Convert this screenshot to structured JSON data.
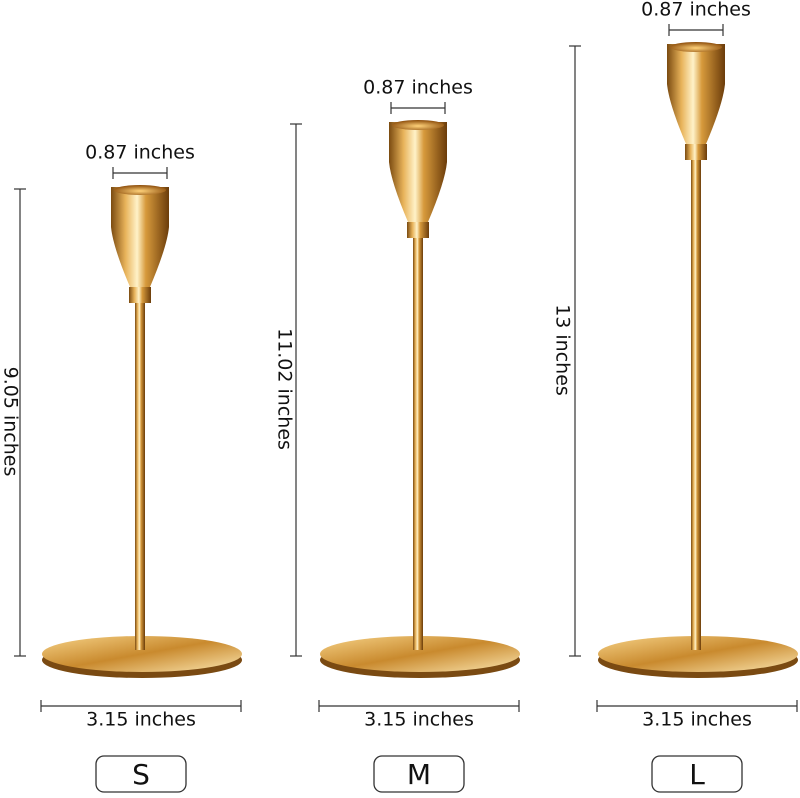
{
  "items": [
    {
      "size": "S",
      "cup_width": "0.87 inches",
      "height": "9.05 inches",
      "base_width": "3.15 inches"
    },
    {
      "size": "M",
      "cup_width": "0.87 inches",
      "height": "11.02 inches",
      "base_width": "3.15 inches"
    },
    {
      "size": "L",
      "cup_width": "0.87 inches",
      "height": "13 inches",
      "base_width": "3.15 inches"
    }
  ]
}
